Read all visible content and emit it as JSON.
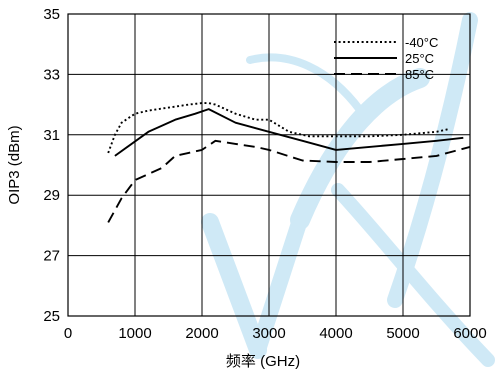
{
  "chart_data": {
    "type": "line",
    "title": "",
    "xlabel": "频率 (GHz)",
    "ylabel": "OIP3 (dBm)",
    "xlim": [
      0,
      6000
    ],
    "ylim": [
      25,
      35
    ],
    "x_ticks": [
      0,
      1000,
      2000,
      3000,
      4000,
      5000,
      6000
    ],
    "y_ticks": [
      25,
      27,
      29,
      31,
      33,
      35
    ],
    "grid": true,
    "legend_position": "top-right",
    "series": [
      {
        "name": "-40°C",
        "style": "dotted",
        "color": "#000000",
        "x": [
          600,
          700,
          800,
          1000,
          1200,
          1500,
          1800,
          2000,
          2100,
          2200,
          2500,
          2800,
          3000,
          3300,
          3600,
          4000,
          4500,
          5000,
          5500,
          5700
        ],
        "y": [
          30.4,
          31.0,
          31.4,
          31.7,
          31.8,
          31.9,
          32.0,
          32.05,
          32.05,
          32.0,
          31.7,
          31.5,
          31.5,
          31.1,
          30.95,
          30.95,
          30.95,
          31.0,
          31.1,
          31.2
        ]
      },
      {
        "name": "25°C",
        "style": "solid",
        "color": "#000000",
        "x": [
          700,
          1200,
          1600,
          1900,
          2100,
          2500,
          3000,
          3500,
          4000,
          4500,
          5000,
          5500,
          5900
        ],
        "y": [
          30.3,
          31.1,
          31.5,
          31.7,
          31.85,
          31.4,
          31.1,
          30.8,
          30.5,
          30.6,
          30.7,
          30.8,
          30.9
        ]
      },
      {
        "name": "85°C",
        "style": "dashed",
        "color": "#000000",
        "x": [
          600,
          800,
          1000,
          1200,
          1400,
          1600,
          1800,
          2000,
          2200,
          2500,
          2800,
          3000,
          3500,
          4000,
          4500,
          5000,
          5500,
          6000
        ],
        "y": [
          28.1,
          28.9,
          29.5,
          29.7,
          29.9,
          30.3,
          30.4,
          30.5,
          30.8,
          30.7,
          30.6,
          30.5,
          30.15,
          30.1,
          30.1,
          30.2,
          30.3,
          30.6
        ]
      }
    ]
  },
  "watermark": {
    "color": "#cfe9f6"
  }
}
